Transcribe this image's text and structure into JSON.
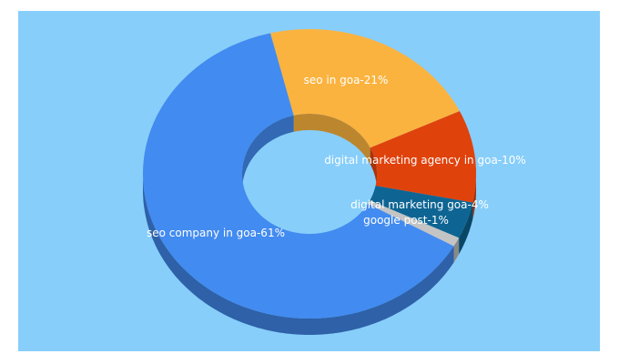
{
  "chart_data": {
    "type": "pie",
    "variant": "3d-donut",
    "background_color": "#87cefa",
    "slices": [
      {
        "label": "seo in goa-21%",
        "value": 21,
        "color": "#fbb33f"
      },
      {
        "label": "digital marketing agency in goa-10%",
        "value": 10,
        "color": "#e0420c"
      },
      {
        "label": "digital marketing goa-4%",
        "value": 4,
        "color": "#0e6593"
      },
      {
        "label": "google post-1%",
        "value": 1,
        "color": "#c4c4c4"
      },
      {
        "label": "seo company in goa-61%",
        "value": 61,
        "color": "#428bf0"
      }
    ]
  }
}
